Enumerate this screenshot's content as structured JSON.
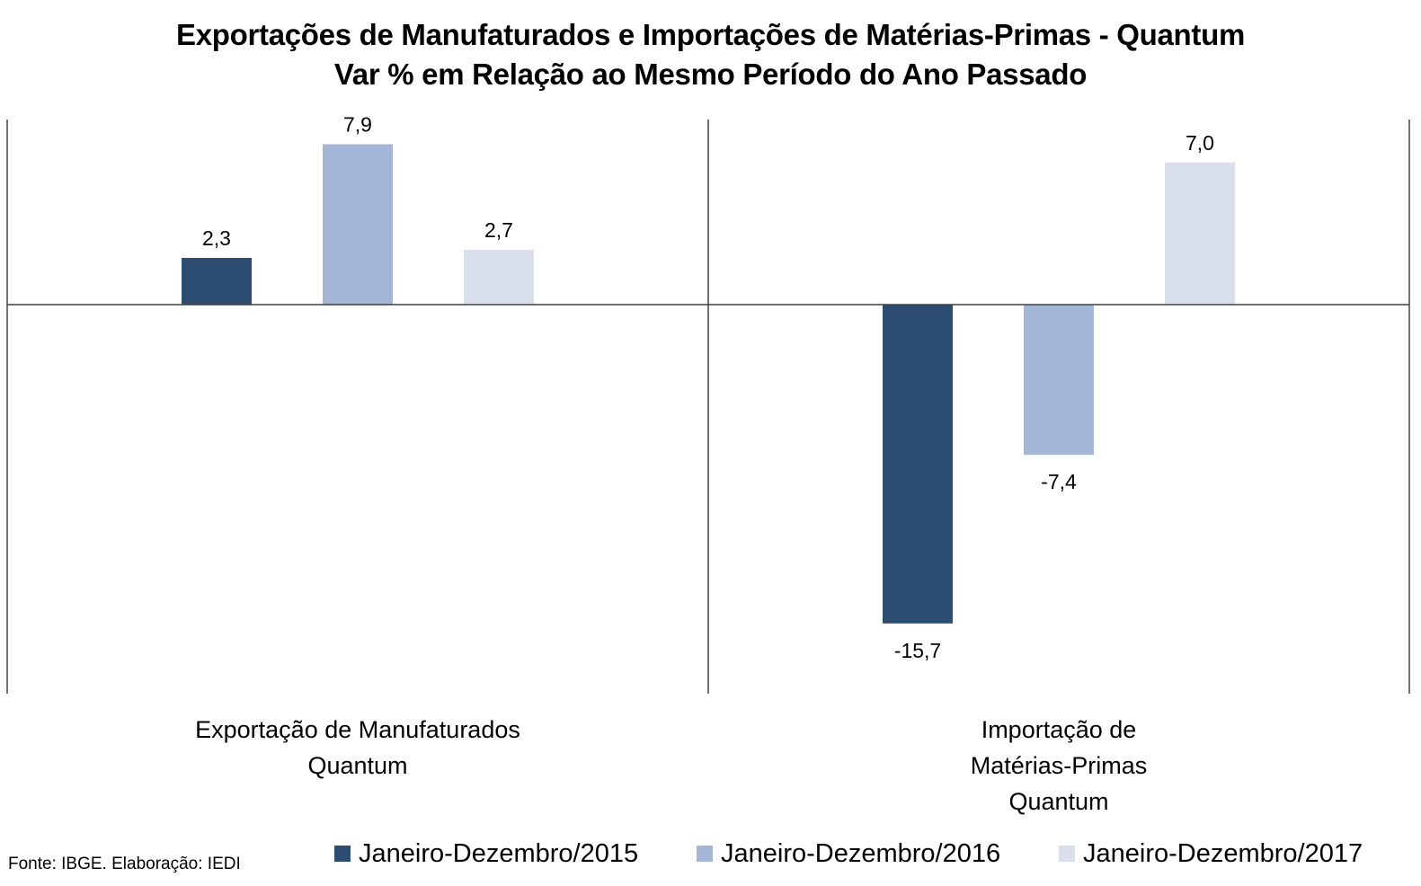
{
  "chart_data": {
    "type": "bar",
    "title": "Exportações de Manufaturados e Importações de Matérias-Primas - Quantum",
    "subtitle": "Var % em Relação ao Mesmo Período do Ano Passado",
    "categories": [
      [
        "Exportação de Manufaturados",
        "Quantum"
      ],
      [
        "Importação de",
        "Matérias-Primas",
        "Quantum"
      ]
    ],
    "series": [
      {
        "name": "Janeiro-Dezembro/2015",
        "values": [
          2.3,
          -15.7
        ],
        "labels": [
          "2,3",
          "-15,7"
        ],
        "color": "#2e4d72"
      },
      {
        "name": "Janeiro-Dezembro/2016",
        "values": [
          7.9,
          -7.4
        ],
        "labels": [
          "7,9",
          "-7,4"
        ],
        "color": "#a4b6d6"
      },
      {
        "name": "Janeiro-Dezembro/2017",
        "values": [
          2.7,
          7.0
        ],
        "labels": [
          "2,7",
          "7,0"
        ],
        "color": "#d9dfeb"
      }
    ],
    "ylim": [
      -19,
      9.1
    ],
    "y_axis_visible": false,
    "grid": false,
    "legend_position": "bottom"
  },
  "source": "Fonte: IBGE. Elaboração: IEDI"
}
